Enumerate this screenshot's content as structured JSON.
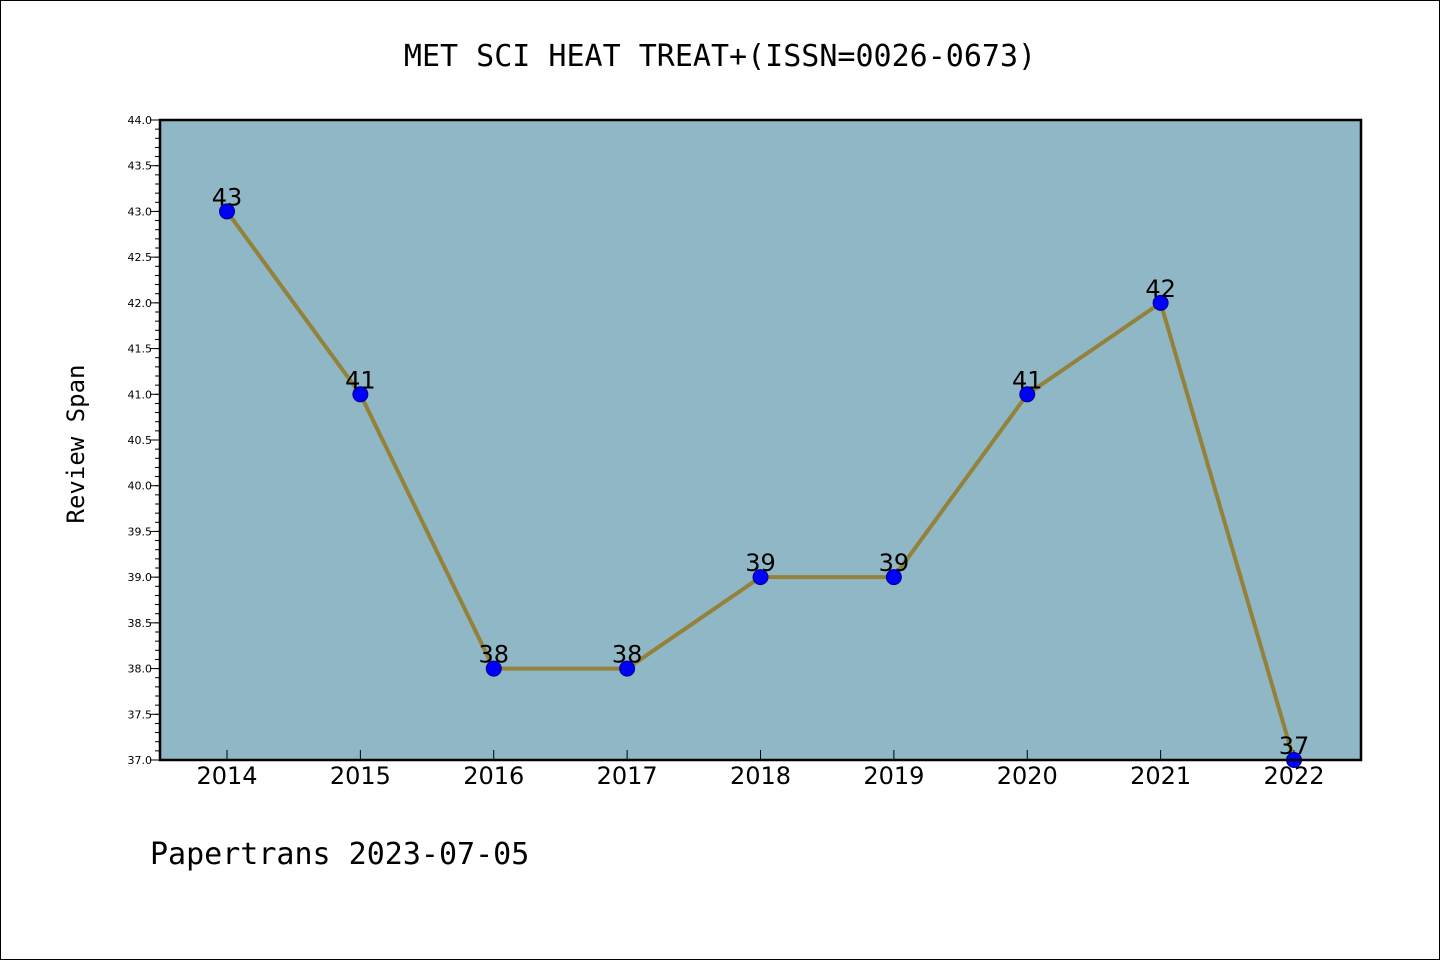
{
  "chart_data": {
    "type": "line",
    "title": "MET SCI HEAT TREAT+(ISSN=0026-0673)",
    "xlabel": "",
    "ylabel": "Review Span",
    "categories": [
      "2014",
      "2015",
      "2016",
      "2017",
      "2018",
      "2019",
      "2020",
      "2021",
      "2022"
    ],
    "values": [
      43,
      41,
      38,
      38,
      39,
      39,
      41,
      42,
      37
    ],
    "data_labels": [
      "43",
      "41",
      "38",
      "38",
      "39",
      "39",
      "41",
      "42",
      "37"
    ],
    "ylim": [
      37.0,
      44.0
    ],
    "yticks": [
      "37.0",
      "37.5",
      "38.0",
      "38.5",
      "39.0",
      "39.5",
      "40.0",
      "40.5",
      "41.0",
      "41.5",
      "42.0",
      "42.5",
      "43.0",
      "43.5",
      "44.0"
    ],
    "grid": false,
    "legend": "none",
    "colors": {
      "plot_background": "#8fb7c5",
      "line": "#94813a",
      "marker": "#0000ff",
      "marker_edge": "#00008b"
    }
  },
  "footer": {
    "text": "Papertrans 2023-07-05"
  }
}
